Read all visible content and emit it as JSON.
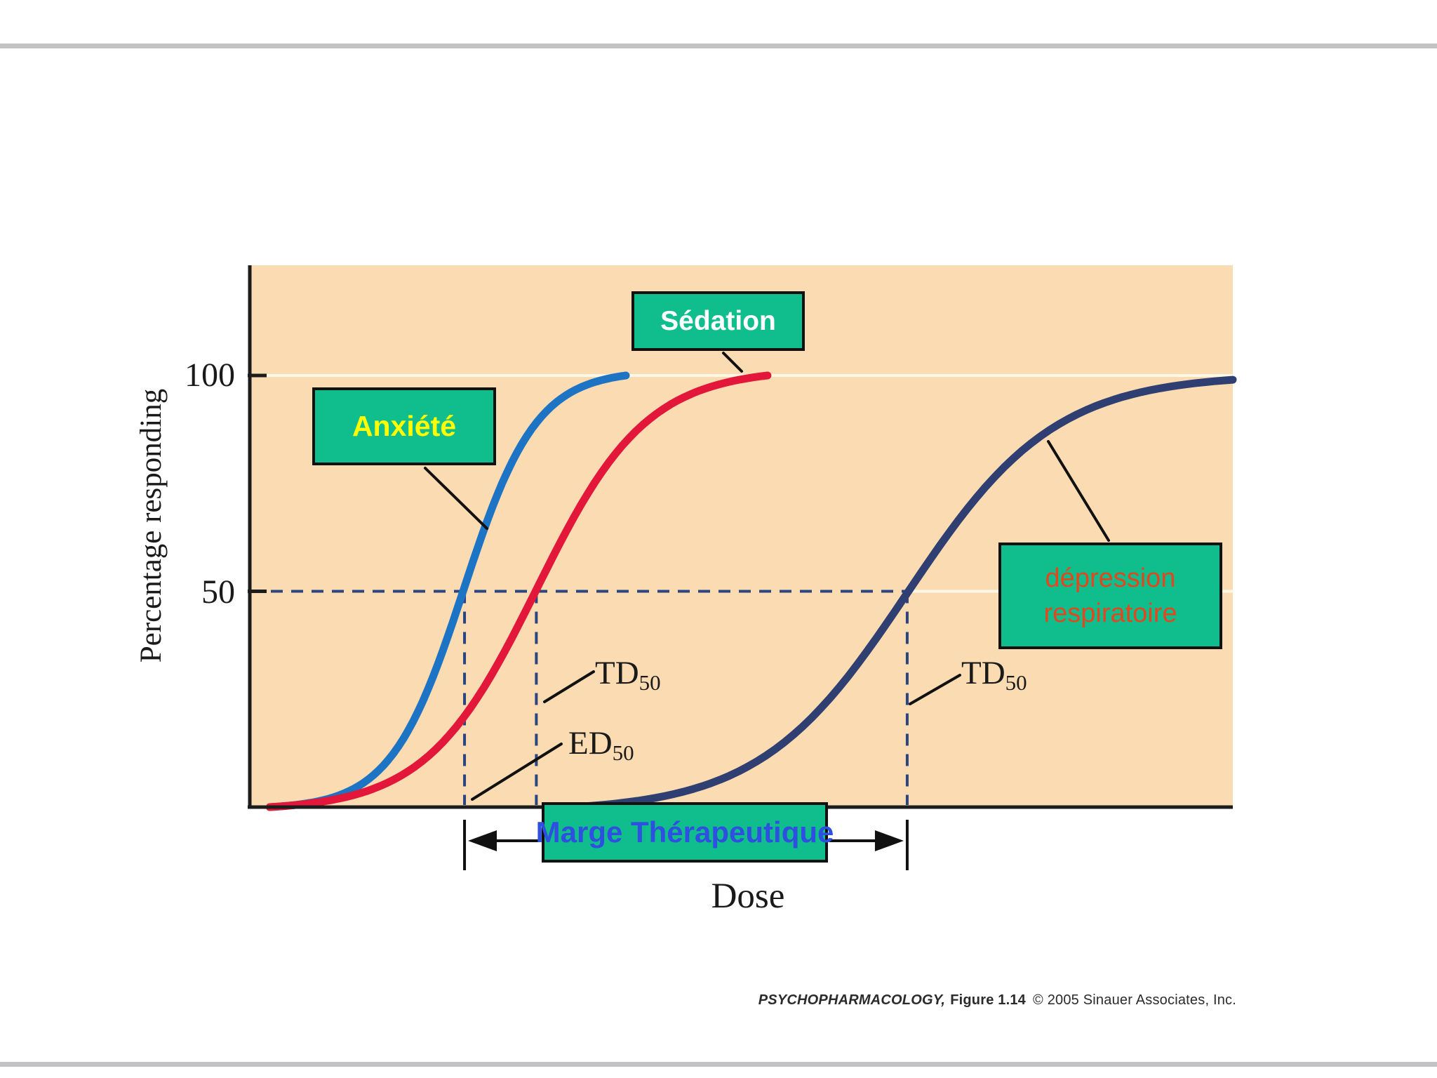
{
  "slide": {
    "footer": {
      "book": "PSYCHOPHARMACOLOGY,",
      "figure": "Figure 1.14",
      "copyright": "© 2005 Sinauer Associates, Inc."
    }
  },
  "boxes": {
    "bg_color": "#10BD8C",
    "anxiete": {
      "label": "Anxiété",
      "text_color": "#FFFF00"
    },
    "sedation": {
      "label": "Sédation",
      "text_color": "#FFFFFF"
    },
    "depression": {
      "line1": "dépression",
      "line2": "respiratoire",
      "text_color": "#E0481F"
    },
    "marge": {
      "label": "Marge Thérapeutique",
      "text_color": "#2F4FE0"
    }
  },
  "chart_data": {
    "type": "line",
    "title": "",
    "xlabel": "Dose",
    "ylabel": "Percentage responding",
    "yticks": [
      100,
      50
    ],
    "ylim": [
      0,
      125
    ],
    "x_axis": "unlabeled dose scale",
    "background": "#FBDCB2",
    "gridlines_at_pct": [
      50,
      100
    ],
    "gridline_color": "#FFF7E6",
    "series": [
      {
        "name": "Anxiété",
        "color": "#1D74C4",
        "start_frac": 0.021,
        "mid_frac": 0.218,
        "slope_frac": 0.037,
        "end_frac": 0.383,
        "end_pct": 100,
        "points_frac_pct": [
          [
            0.021,
            0
          ],
          [
            0.1,
            4
          ],
          [
            0.14,
            10
          ],
          [
            0.175,
            23
          ],
          [
            0.218,
            50
          ],
          [
            0.246,
            68
          ],
          [
            0.275,
            82
          ],
          [
            0.31,
            92
          ],
          [
            0.345,
            97
          ],
          [
            0.383,
            100
          ]
        ]
      },
      {
        "name": "Sédation",
        "color": "#E3173A",
        "start_frac": 0.021,
        "mid_frac": 0.292,
        "slope_frac": 0.056,
        "end_frac": 0.527,
        "end_pct": 100,
        "points_frac_pct": [
          [
            0.021,
            0
          ],
          [
            0.125,
            5
          ],
          [
            0.175,
            11
          ],
          [
            0.218,
            21
          ],
          [
            0.253,
            33
          ],
          [
            0.292,
            50
          ],
          [
            0.332,
            67
          ],
          [
            0.375,
            82
          ],
          [
            0.424,
            91
          ],
          [
            0.474,
            96
          ],
          [
            0.527,
            100
          ]
        ]
      },
      {
        "name": "dépression respiratoire",
        "color": "#2F3F72",
        "start_frac": 0.33,
        "mid_frac": 0.669,
        "slope_frac": 0.075,
        "end_frac": 1.0,
        "end_pct": 99,
        "points_frac_pct": [
          [
            0.33,
            1
          ],
          [
            0.446,
            5
          ],
          [
            0.503,
            10
          ],
          [
            0.553,
            17
          ],
          [
            0.603,
            29
          ],
          [
            0.669,
            50
          ],
          [
            0.731,
            70
          ],
          [
            0.788,
            83
          ],
          [
            0.852,
            92
          ],
          [
            0.924,
            97
          ],
          [
            1.0,
            99
          ]
        ]
      }
    ],
    "annotations": {
      "level_pct": 50,
      "dashed_color": "#2B4580",
      "ed50": {
        "label_main": "ED",
        "label_sub": "50",
        "x_frac": 0.219,
        "curve": "Anxiété"
      },
      "td50_sedation": {
        "label_main": "TD",
        "label_sub": "50",
        "x_frac": 0.292,
        "curve": "Sédation"
      },
      "td50_respiratory": {
        "label_main": "TD",
        "label_sub": "50",
        "x_frac": 0.669,
        "curve": "dépression respiratoire"
      },
      "therapeutic_margin": {
        "label": "Marge Thérapeutique",
        "from_frac": 0.219,
        "to_frac": 0.669
      }
    }
  },
  "theme": {
    "plot_background": "#FBDCB2",
    "box_green": "#10BD8C",
    "gridline": "#FFF7E6",
    "axis": "#1c1c1c",
    "gray_bar": "#C3C3C5",
    "curve_blue": "#1D74C4",
    "curve_red": "#E3173A",
    "curve_navy": "#2F3F72",
    "dashed_blue": "#2B4580",
    "text_yellow": "#FFFF00",
    "text_white": "#FFFFFF",
    "text_blue": "#2F4FE0",
    "text_orange": "#E0481F"
  }
}
